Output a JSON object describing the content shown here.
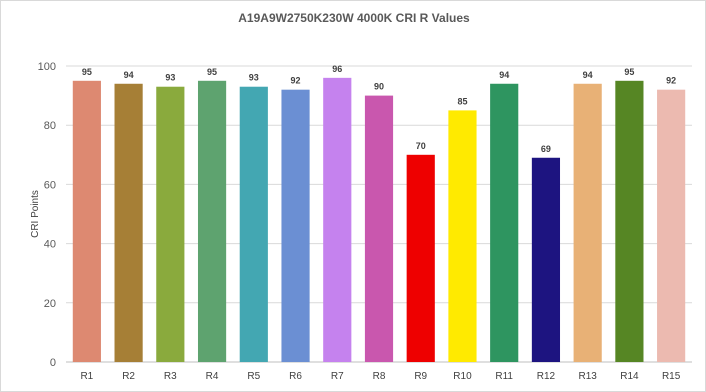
{
  "chart_data": {
    "type": "bar",
    "title": "A19A9W2750K230W 4000K CRI R Values",
    "xlabel": "",
    "ylabel": "CRI Points",
    "ylim": [
      0,
      100
    ],
    "yticks": [
      0,
      20,
      40,
      60,
      80,
      100
    ],
    "grid": true,
    "legend": "none",
    "categories": [
      "R1",
      "R2",
      "R3",
      "R4",
      "R5",
      "R6",
      "R7",
      "R8",
      "R9",
      "R10",
      "R11",
      "R12",
      "R13",
      "R14",
      "R15"
    ],
    "values": [
      95,
      94,
      93,
      95,
      93,
      92,
      96,
      90,
      70,
      85,
      94,
      69,
      94,
      95,
      92
    ],
    "colors": [
      "#dd8971",
      "#a67f36",
      "#8aaa3d",
      "#5ea36f",
      "#43a7b2",
      "#6b8fd3",
      "#c582ee",
      "#c957ae",
      "#ee0000",
      "#ffea00",
      "#2e9560",
      "#1d1480",
      "#e8b176",
      "#568624",
      "#ecbab0"
    ]
  }
}
